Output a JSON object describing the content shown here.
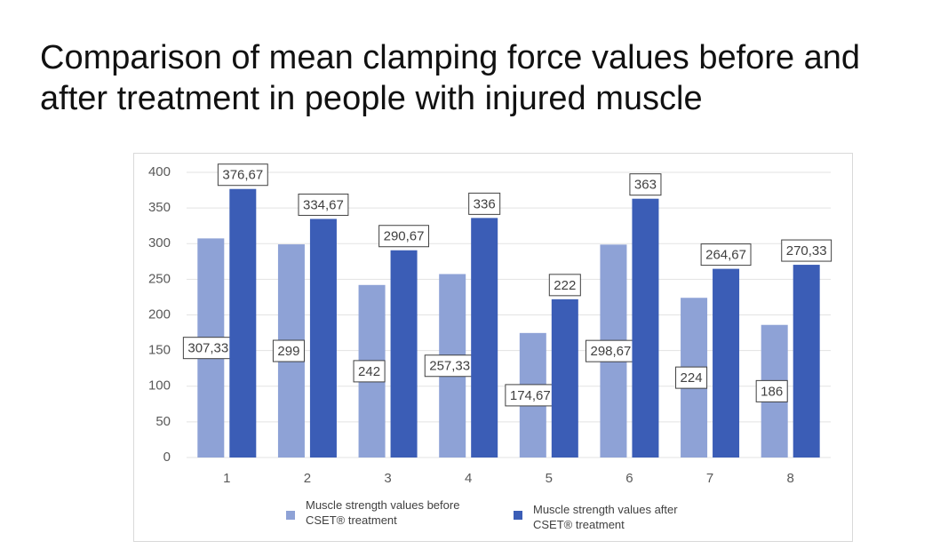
{
  "chart_data": {
    "type": "bar",
    "title": "Comparison of mean clamping force values before and after treatment in people with injured muscle",
    "categories": [
      "1",
      "2",
      "3",
      "4",
      "5",
      "6",
      "7",
      "8"
    ],
    "series": [
      {
        "name": "Muscle strength values before CSET® treatment",
        "color": "#8ea2d6",
        "values": [
          307.33,
          299,
          242,
          257.33,
          174.67,
          298.67,
          224,
          186
        ],
        "value_labels": [
          "307,33",
          "299",
          "242",
          "257,33",
          "174,67",
          "298,67",
          "224",
          "186"
        ]
      },
      {
        "name": "Muscle strength values after CSET® treatment",
        "color": "#3b5db6",
        "values": [
          376.67,
          334.67,
          290.67,
          336,
          222,
          363,
          264.67,
          270.33
        ],
        "value_labels": [
          "376,67",
          "334,67",
          "290,67",
          "336",
          "222",
          "363",
          "264,67",
          "270,33"
        ]
      }
    ],
    "ylim": [
      0,
      400
    ],
    "yticks": [
      0,
      50,
      100,
      150,
      200,
      250,
      300,
      350,
      400
    ],
    "grid": true
  }
}
